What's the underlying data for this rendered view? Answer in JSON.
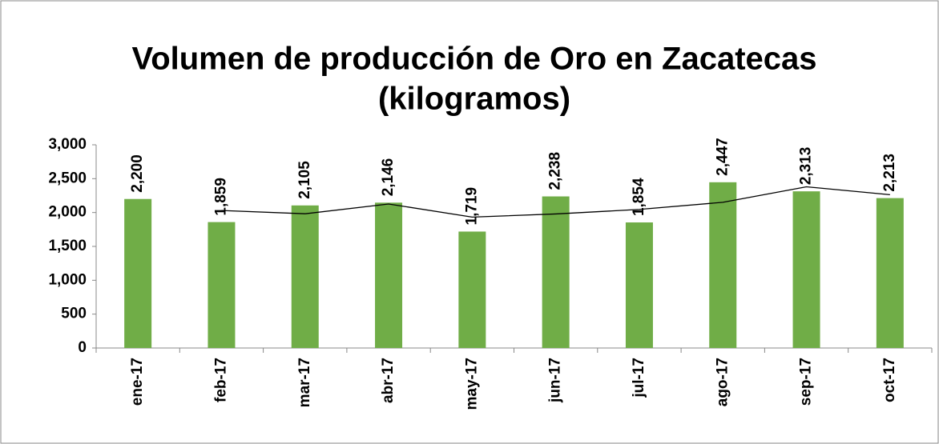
{
  "chart_data": {
    "type": "bar",
    "title": [
      "Volumen de producción de Oro en Zacatecas",
      "(kilogramos)"
    ],
    "categories": [
      "ene-17",
      "feb-17",
      "mar-17",
      "abr-17",
      "may-17",
      "jun-17",
      "jul-17",
      "ago-17",
      "sep-17",
      "oct-17"
    ],
    "values": [
      2200,
      1859,
      2105,
      2146,
      1719,
      2238,
      1854,
      2447,
      2313,
      2213
    ],
    "value_labels": [
      "2,200",
      "1,859",
      "2,105",
      "2,146",
      "1,719",
      "2,238",
      "1,854",
      "2,447",
      "2,313",
      "2,213"
    ],
    "color": "#70ad47",
    "trend": {
      "color": "#000000",
      "values": [
        null,
        2030,
        1982,
        2126,
        1933,
        1979,
        2046,
        2151,
        2380,
        2263
      ]
    },
    "ylim": [
      0,
      3000
    ],
    "yticks": [
      0,
      500,
      {
        "value": 1000,
        "label": "1,000"
      },
      {
        "value": 1500,
        "label": "1,500"
      },
      {
        "value": 2000,
        "label": "2,000"
      },
      {
        "value": 2500,
        "label": "2,500"
      },
      {
        "value": 3000,
        "label": "3,000"
      }
    ],
    "grid": false
  }
}
